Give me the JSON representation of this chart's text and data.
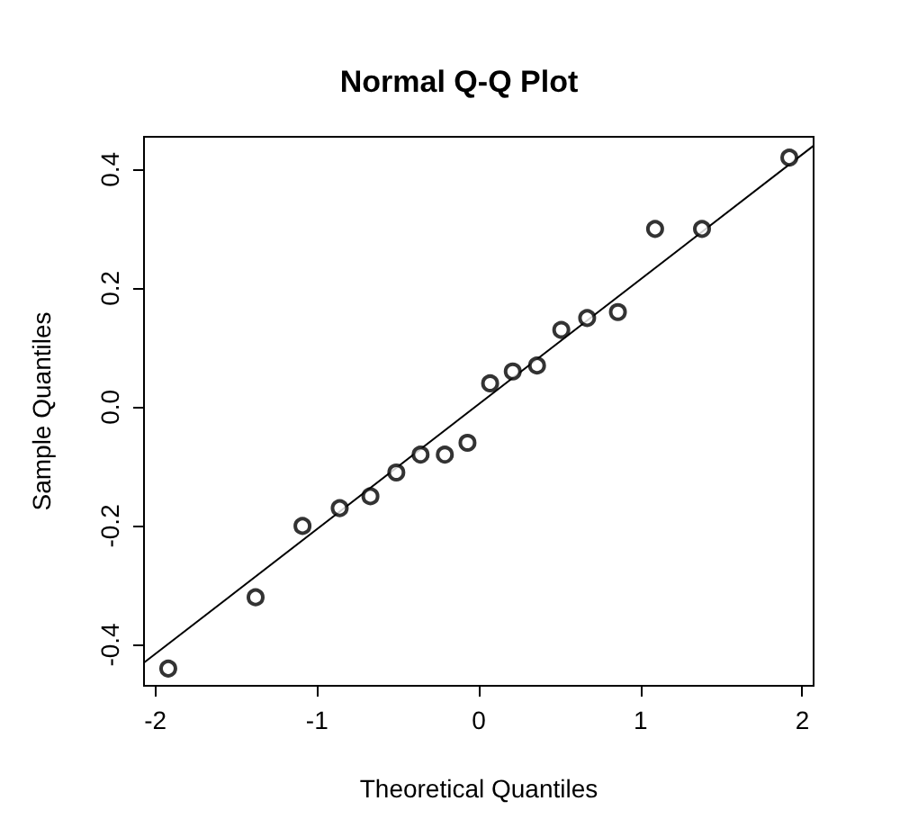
{
  "chart_data": {
    "type": "scatter",
    "title": "Normal Q-Q Plot",
    "xlabel": "Theoretical Quantiles",
    "ylabel": "Sample Quantiles",
    "xlim": [
      -2.07,
      2.07
    ],
    "xticks": [
      -2,
      -1,
      0,
      1,
      2
    ],
    "ylim": [
      -0.469,
      0.455
    ],
    "yticks": [
      -0.4,
      -0.2,
      {
        "value": 0,
        "label": "0.0"
      },
      0.2,
      0.4
    ],
    "grid": false,
    "marker": "circle",
    "series": [
      {
        "color": "#000000",
        "x": [
          -1.92,
          -1.38,
          -1.09,
          -0.86,
          -0.67,
          -0.51,
          -0.36,
          -0.21,
          -0.07,
          0.07,
          0.21,
          0.36,
          0.51,
          0.67,
          0.86,
          1.09,
          1.38,
          1.92
        ],
        "values": [
          -0.44,
          -0.32,
          -0.2,
          -0.17,
          -0.15,
          -0.11,
          -0.08,
          -0.08,
          -0.06,
          0.04,
          0.06,
          0.07,
          0.13,
          0.15,
          0.16,
          0.3,
          0.3,
          0.42
        ]
      },
      {
        "type": "line",
        "color": "#000000",
        "line_style": "solid",
        "marker": "none",
        "x": [
          -2.07,
          2.07
        ],
        "values": [
          -0.43,
          0.44
        ]
      }
    ]
  }
}
